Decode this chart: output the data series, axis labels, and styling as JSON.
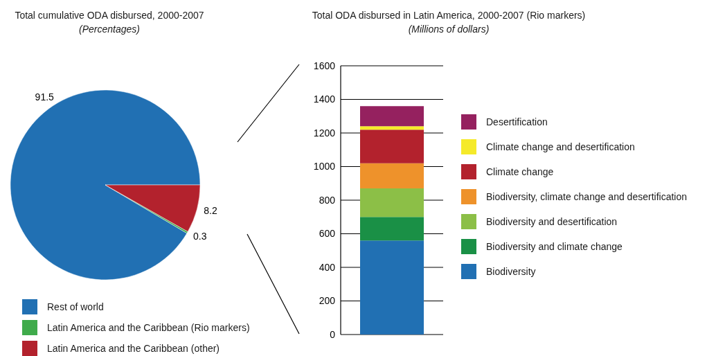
{
  "chart_data": [
    {
      "type": "pie",
      "title": "Total cumulative ODA disbursed, 2000-2007",
      "subtitle": "(Percentages)",
      "categories": [
        "Rest of world",
        "Latin America and the Caribbean (Rio markers)",
        "Latin America and the Caribbean (other)"
      ],
      "values": [
        91.5,
        0.3,
        8.2
      ],
      "colors": [
        "#2170b3",
        "#3fab4b",
        "#b3222d"
      ],
      "data_labels": true,
      "legend": "bottom"
    },
    {
      "type": "bar",
      "title": "Total ODA disbursed in Latin America, 2000-2007 (Rio markers)",
      "subtitle": "(Millions of dollars)",
      "categories": [
        null
      ],
      "stacked": true,
      "series": [
        {
          "name": "Biodiversity",
          "color": "#2170b3",
          "values": [
            560
          ]
        },
        {
          "name": "Biodiversity and climate change",
          "color": "#1a9046",
          "values": [
            140
          ]
        },
        {
          "name": "Biodiversity and desertification",
          "color": "#8cbf47",
          "values": [
            170
          ]
        },
        {
          "name": "Biodiversity, climate change and desertification",
          "color": "#ee922b",
          "values": [
            150
          ]
        },
        {
          "name": "Climate change",
          "color": "#b3222d",
          "values": [
            200
          ]
        },
        {
          "name": "Climate change and desertification",
          "color": "#f5ea2a",
          "values": [
            20
          ]
        },
        {
          "name": "Desertification",
          "color": "#95215f",
          "values": [
            120
          ]
        }
      ],
      "ylim": [
        0,
        1600
      ],
      "yticks": [
        0,
        200,
        400,
        600,
        800,
        1000,
        1200,
        1400,
        1600
      ],
      "grid": "y",
      "tick_labels": "y",
      "legend": "right"
    }
  ]
}
